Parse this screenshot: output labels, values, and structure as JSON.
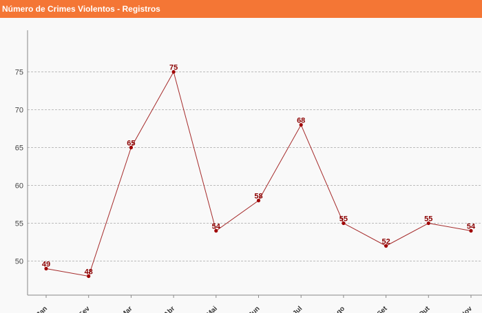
{
  "header": {
    "title": "Número de Crimes Violentos - Registros"
  },
  "colors": {
    "header_bg": "#f47635",
    "line": "#a52a2a",
    "marker": "#a00000",
    "data_label": "#8b0000",
    "grid": "#bbbbbb",
    "plot_bg": "#f9f9f9"
  },
  "chart_data": {
    "type": "line",
    "title": "Número de Crimes Violentos - Registros",
    "xlabel": "",
    "ylabel": "",
    "categories": [
      "Jan",
      "Fev",
      "Mar",
      "Abr",
      "Mai",
      "Jun",
      "Jul",
      "Ago",
      "Set",
      "Out",
      "Nov"
    ],
    "series": [
      {
        "values": [
          49,
          48,
          65,
          75,
          54,
          58,
          68,
          55,
          52,
          55,
          54
        ]
      }
    ],
    "yticks": [
      50,
      55,
      60,
      65,
      70,
      75
    ],
    "ylim": [
      45.5,
      80.5
    ],
    "grid": "horizontal dashed",
    "legend": "none"
  }
}
